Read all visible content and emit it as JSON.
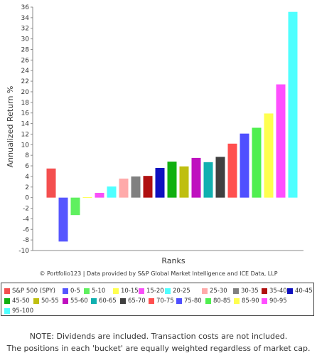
{
  "chart_data": {
    "type": "bar",
    "xlabel": "Ranks",
    "ylabel": "Annualized Return %",
    "ylim": [
      -10,
      36
    ],
    "yticks": [
      36,
      34,
      32,
      30,
      28,
      26,
      24,
      22,
      20,
      18,
      16,
      14,
      12,
      10,
      8,
      6,
      4,
      2,
      0,
      -2,
      -4,
      -6,
      -8,
      -10
    ],
    "grid": false,
    "legend_position": "bottom",
    "categories": [
      "S&P 500 (SPY)",
      "0-5",
      "5-10",
      "10-15",
      "15-20",
      "20-25",
      "25-30",
      "30-35",
      "35-40",
      "40-45",
      "45-50",
      "50-55",
      "55-60",
      "60-65",
      "65-70",
      "70-75",
      "75-80",
      "80-85",
      "85-90",
      "90-95",
      "95-100"
    ],
    "values": [
      5.5,
      -8.3,
      -3.3,
      0.1,
      0.9,
      2.1,
      3.6,
      4.0,
      4.1,
      5.6,
      6.8,
      5.9,
      7.5,
      6.7,
      7.7,
      10.2,
      12.1,
      13.2,
      15.9,
      21.4,
      35.1
    ],
    "colors": [
      "#f44f4f",
      "#5656ff",
      "#5ff05f",
      "#ffff4f",
      "#f84ff8",
      "#4fffff",
      "#ffaaaa",
      "#808080",
      "#b01010",
      "#0f10bf",
      "#10b010",
      "#bfbf10",
      "#bf10bf",
      "#10b0b0",
      "#404040",
      "#ff4f4f",
      "#4f4fff",
      "#4fef4f",
      "#ffff4f",
      "#ff4fff",
      "#4fffff"
    ]
  },
  "credit": "© Portfolio123 | Data provided by S&P Global Market Intelligence and ICE Data, LLP",
  "legend": {
    "items": [
      "S&P 500 (SPY)",
      "0-5",
      "5-10",
      "10-15",
      "15-20",
      "20-25",
      "25-30",
      "30-35",
      "35-40",
      "40-45",
      "45-50",
      "50-55",
      "55-60",
      "60-65",
      "65-70",
      "70-75",
      "75-80",
      "80-85",
      "85-90",
      "90-95",
      "95-100"
    ]
  },
  "notes": {
    "line1": "NOTE: Dividends are included. Transaction costs are not included.",
    "line2": "The positions in each 'bucket' are equally weighted regardless of market cap."
  }
}
